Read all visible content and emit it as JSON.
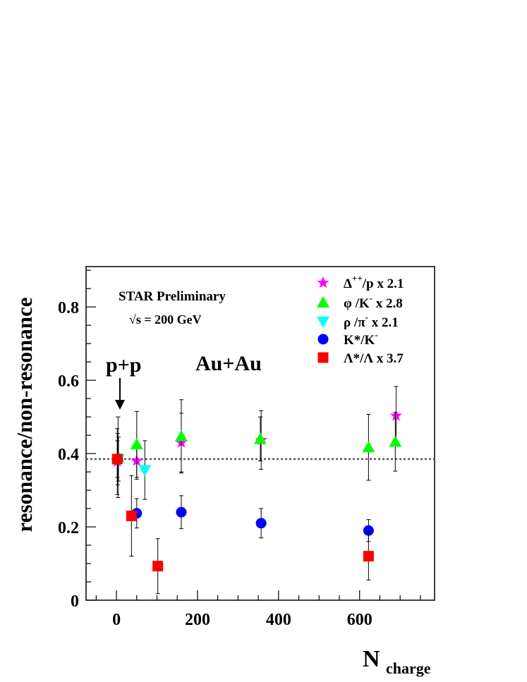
{
  "chart_data": {
    "type": "scatter",
    "xlabel": "N",
    "xlabel_sub": "charge",
    "ylabel": "resonance/non-resonance",
    "xlim": [
      -75,
      785
    ],
    "ylim": [
      0,
      0.91
    ],
    "x_ticks": [
      {
        "value": 0,
        "label": "0"
      },
      {
        "value": 200,
        "label": "200"
      },
      {
        "value": 400,
        "label": "400"
      },
      {
        "value": 600,
        "label": "600"
      }
    ],
    "y_ticks": [
      {
        "value": 0,
        "label": "0"
      },
      {
        "value": 0.2,
        "label": "0.2"
      },
      {
        "value": 0.4,
        "label": "0.4"
      },
      {
        "value": 0.6,
        "label": "0.6"
      },
      {
        "value": 0.8,
        "label": "0.8"
      }
    ],
    "reference_line": {
      "y": 0.385,
      "style": "dotted"
    },
    "annotations": {
      "experiment": "STAR Preliminary",
      "energy": "√s = 200 GeV",
      "pp_label": "p+p",
      "auau_label": "Au+Au"
    },
    "legend_position": "top-right",
    "series": [
      {
        "name": "Δ++/p  x 2.1",
        "name_parts": {
          "base": "Δ",
          "sup": "++",
          "rest": "/p  x 2.1"
        },
        "marker": "star",
        "color": "#ff00ff",
        "points": [
          {
            "x": 2,
            "y": 0.378,
            "err": 0.09
          },
          {
            "x": 50,
            "y": 0.38,
            "err": 0.05
          },
          {
            "x": 160,
            "y": 0.43,
            "err": 0.08
          },
          {
            "x": 357,
            "y": 0.437,
            "err": 0.08
          },
          {
            "x": 690,
            "y": 0.503,
            "err": 0.08
          }
        ]
      },
      {
        "name": "φ /K-  x 2.8",
        "name_parts": {
          "base": "φ /K",
          "sup": "-",
          "rest": "  x 2.8"
        },
        "marker": "triangle-up",
        "color": "#00ff00",
        "points": [
          {
            "x": 4,
            "y": 0.39,
            "err": 0.11
          },
          {
            "x": 50,
            "y": 0.425,
            "err": 0.09
          },
          {
            "x": 160,
            "y": 0.447,
            "err": 0.1
          },
          {
            "x": 355,
            "y": 0.44,
            "err": 0.06
          },
          {
            "x": 622,
            "y": 0.417,
            "err": 0.09
          },
          {
            "x": 688,
            "y": 0.432,
            "err": 0.08
          }
        ]
      },
      {
        "name": "ρ /π-  x 2.1",
        "name_parts": {
          "base": "ρ /π",
          "sup": "-",
          "rest": "  x 2.1"
        },
        "marker": "triangle-down",
        "color": "#00ffff",
        "points": [
          {
            "x": 5,
            "y": 0.385,
            "err": 0.06
          },
          {
            "x": 70,
            "y": 0.355,
            "err": 0.08
          }
        ]
      },
      {
        "name": "K*/K-",
        "name_parts": {
          "base": "K*/K",
          "sup": "-",
          "rest": ""
        },
        "marker": "circle",
        "color": "#0000ff",
        "points": [
          {
            "x": 3,
            "y": 0.385,
            "err": 0.07
          },
          {
            "x": 50,
            "y": 0.237,
            "err": 0.04
          },
          {
            "x": 160,
            "y": 0.24,
            "err": 0.045
          },
          {
            "x": 357,
            "y": 0.21,
            "err": 0.04
          },
          {
            "x": 622,
            "y": 0.19,
            "err": 0.03
          }
        ]
      },
      {
        "name": "Λ*/Λ  x 3.7",
        "name_parts": {
          "base": "Λ*/Λ  x 3.7",
          "sup": "",
          "rest": ""
        },
        "marker": "square",
        "color": "#ff0000",
        "points": [
          {
            "x": 2,
            "y": 0.385,
            "err": 0.05
          },
          {
            "x": 37,
            "y": 0.23,
            "err": 0.11
          },
          {
            "x": 102,
            "y": 0.093,
            "err": 0.075
          },
          {
            "x": 622,
            "y": 0.12,
            "err": 0.065
          }
        ]
      }
    ]
  }
}
